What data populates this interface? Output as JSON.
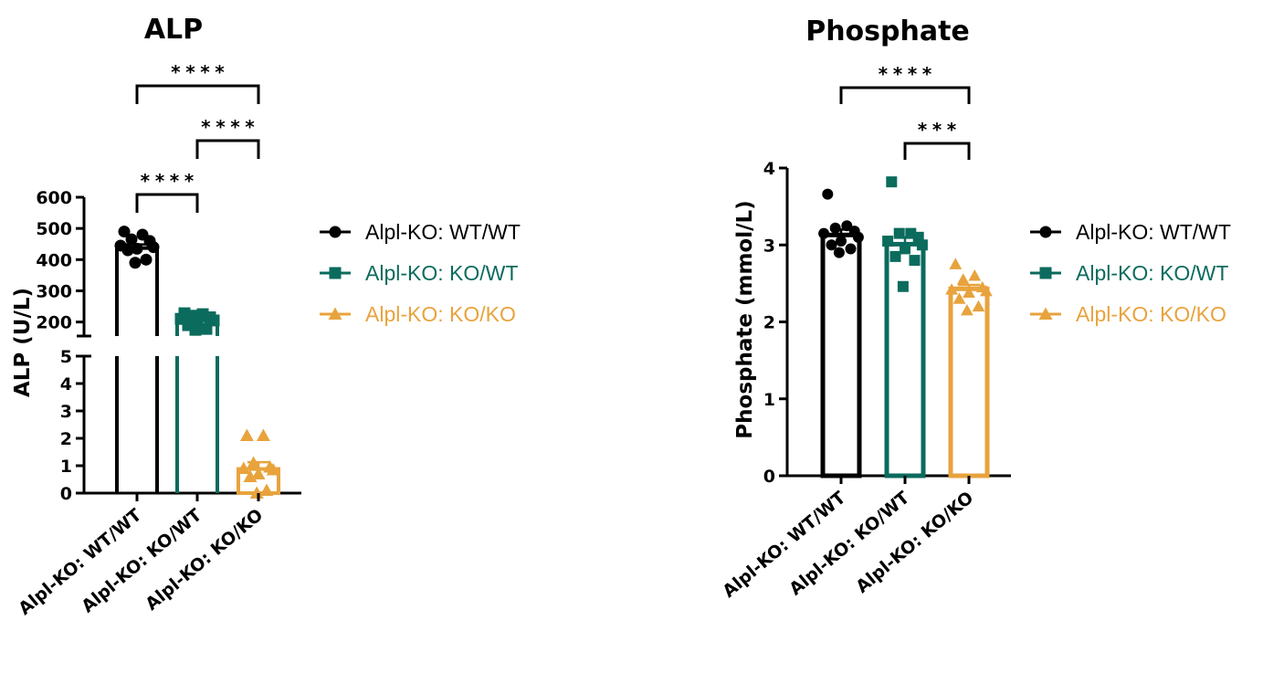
{
  "colors": {
    "wt_wt": "#000000",
    "ko_wt": "#0b6b5d",
    "ko_ko": "#e8a33d"
  },
  "chart_data": [
    {
      "type": "bar",
      "title": "ALP",
      "ylabel": "ALP (U/L)",
      "xlabel": "",
      "categories": [
        "Alpl-KO: WT/WT",
        "Alpl-KO: KO/WT",
        "Alpl-KO: KO/KO"
      ],
      "axis_break": true,
      "ylim_lower": [
        0,
        5
      ],
      "ylim_upper": [
        150,
        600
      ],
      "yticks_lower": [
        "0",
        "1",
        "2",
        "3",
        "4",
        "5"
      ],
      "yticks_upper": [
        "200",
        "300",
        "400",
        "500",
        "600"
      ],
      "series": [
        {
          "name": "Alpl-KO: WT/WT",
          "marker": "circle",
          "mean": 437,
          "sem": 12,
          "points": [
            490,
            480,
            465,
            460,
            445,
            440,
            435,
            430,
            400,
            390
          ]
        },
        {
          "name": "Alpl-KO: KO/WT",
          "marker": "square",
          "mean": 205,
          "sem": 8,
          "points": [
            228,
            225,
            220,
            215,
            210,
            205,
            198,
            190,
            178,
            175
          ]
        },
        {
          "name": "Alpl-KO: KO/KO",
          "marker": "triangle",
          "mean": 0.88,
          "sem": 0.25,
          "points": [
            2.1,
            2.1,
            1.1,
            0.95,
            0.9,
            0.85,
            0.7,
            0.6,
            0.1,
            0.0
          ]
        }
      ],
      "significance": [
        {
          "from": 0,
          "to": 2,
          "label": "****"
        },
        {
          "from": 1,
          "to": 2,
          "label": "****"
        },
        {
          "from": 0,
          "to": 1,
          "label": "****"
        }
      ]
    },
    {
      "type": "bar",
      "title": "Phosphate",
      "ylabel": "Phosphate (mmol/L)",
      "xlabel": "",
      "categories": [
        "Alpl-KO: WT/WT",
        "Alpl-KO: KO/WT",
        "Alpl-KO: KO/KO"
      ],
      "ylim": [
        0,
        4
      ],
      "yticks": [
        "0",
        "1",
        "2",
        "3",
        "4"
      ],
      "series": [
        {
          "name": "Alpl-KO: WT/WT",
          "marker": "circle",
          "mean": 3.13,
          "sem": 0.07,
          "points": [
            3.66,
            3.25,
            3.22,
            3.18,
            3.15,
            3.1,
            3.05,
            3.0,
            2.95,
            2.9
          ]
        },
        {
          "name": "Alpl-KO: KO/WT",
          "marker": "square",
          "mean": 3.01,
          "sem": 0.09,
          "points": [
            3.82,
            3.15,
            3.15,
            3.1,
            3.05,
            3.0,
            2.95,
            2.85,
            2.8,
            2.46
          ]
        },
        {
          "name": "Alpl-KO: KO/KO",
          "marker": "triangle",
          "mean": 2.43,
          "sem": 0.05,
          "points": [
            2.75,
            2.6,
            2.55,
            2.45,
            2.42,
            2.4,
            2.38,
            2.3,
            2.2,
            2.15
          ]
        }
      ],
      "significance": [
        {
          "from": 0,
          "to": 2,
          "label": "****"
        },
        {
          "from": 1,
          "to": 2,
          "label": "***"
        }
      ]
    }
  ],
  "legend": [
    {
      "label": "Alpl-KO: WT/WT",
      "marker": "circle"
    },
    {
      "label": "Alpl-KO: KO/WT",
      "marker": "square"
    },
    {
      "label": "Alpl-KO: KO/KO",
      "marker": "triangle"
    }
  ]
}
